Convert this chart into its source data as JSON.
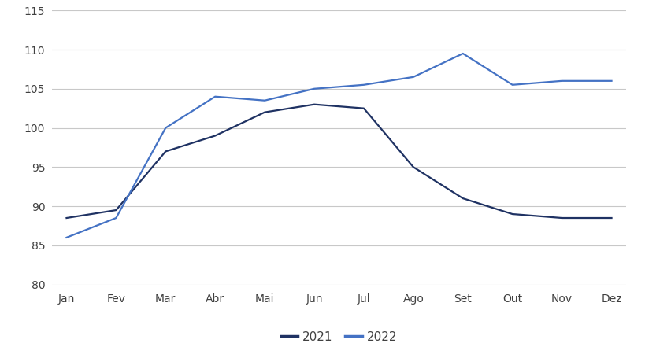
{
  "months": [
    "Jan",
    "Fev",
    "Mar",
    "Abr",
    "Mai",
    "Jun",
    "Jul",
    "Ago",
    "Set",
    "Out",
    "Nov",
    "Dez"
  ],
  "series_2021": [
    88.5,
    89.5,
    97.0,
    99.0,
    102.0,
    103.0,
    102.5,
    95.0,
    91.0,
    89.0,
    88.5,
    88.5
  ],
  "series_2022": [
    86.0,
    88.5,
    100.0,
    104.0,
    103.5,
    105.0,
    105.5,
    106.5,
    109.5,
    105.5,
    106.0,
    106.0
  ],
  "color_2021": "#1f3263",
  "color_2022": "#4472c4",
  "ylim": [
    80,
    115
  ],
  "yticks": [
    80,
    85,
    90,
    95,
    100,
    105,
    110,
    115
  ],
  "legend_labels": [
    "2021",
    "2022"
  ],
  "linewidth": 1.6,
  "background_color": "#ffffff",
  "grid_color": "#c8c8c8",
  "tick_color": "#404040",
  "tick_fontsize": 10
}
